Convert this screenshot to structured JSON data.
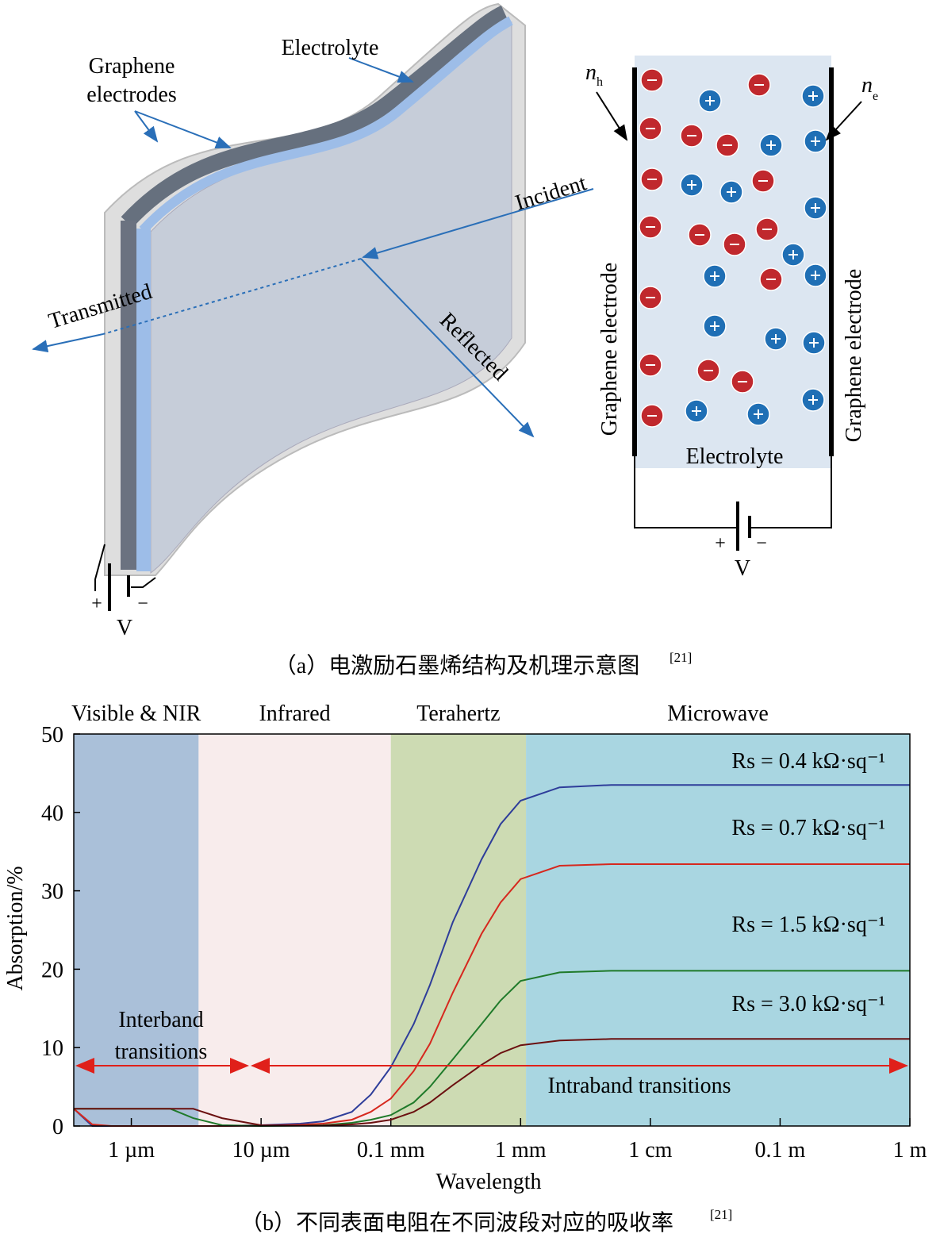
{
  "diagram_a": {
    "graphene_electrodes": [
      "Graphene",
      "electrodes"
    ],
    "electrolyte": "Electrolyte",
    "incident": "Incident",
    "transmitted": "Transmitted",
    "reflected": "Reflected",
    "plus": "+",
    "minus": "−",
    "voltage": "V"
  },
  "diagram_right": {
    "n_h": {
      "symbol": "n",
      "sub": "h"
    },
    "n_e": {
      "symbol": "n",
      "sub": "e"
    },
    "left_electrode": "Graphene electrode",
    "right_electrode": "Graphene electrode",
    "electrolyte": "Electrolyte",
    "plus": "+",
    "minus": "−",
    "voltage": "V"
  },
  "caption_a": {
    "text": "（a）电激励石墨烯结构及机理示意图",
    "ref": "[21]"
  },
  "caption_b": {
    "text": "（b）不同表面电阻在不同波段对应的吸收率",
    "ref": "[21]"
  },
  "chart_data": {
    "type": "line",
    "x_label": "Wavelength",
    "y_label": "Absorption/%",
    "xscale": "log",
    "xlim": [
      3.6e-07,
      1
    ],
    "ylim": [
      0,
      50
    ],
    "xticks": [
      {
        "value": 1e-06,
        "label": "1 µm"
      },
      {
        "value": 1e-05,
        "label": "10 µm"
      },
      {
        "value": 0.0001,
        "label": "0.1 mm"
      },
      {
        "value": 0.001,
        "label": "1 mm"
      },
      {
        "value": 0.01,
        "label": "1 cm"
      },
      {
        "value": 0.1,
        "label": "0.1 m"
      },
      {
        "value": 1,
        "label": "1 m"
      }
    ],
    "yticks": [
      0,
      10,
      20,
      30,
      40,
      50
    ],
    "bands": [
      {
        "label": "Visible & NIR",
        "range": [
          3.6e-07,
          3.3e-06
        ],
        "color": "#aac0d9"
      },
      {
        "label": "Infrared",
        "range": [
          3.3e-06,
          0.0001
        ],
        "color": "#f8ecec"
      },
      {
        "label": "Terahertz",
        "range": [
          0.0001,
          0.0011
        ],
        "color": "#cddbb3"
      },
      {
        "label": "Microwave",
        "range": [
          0.0011,
          1
        ],
        "color": "#a9d6e1"
      }
    ],
    "annotations": {
      "interband": [
        "Interband",
        "transitions"
      ],
      "intraband": "Intraband transitions"
    },
    "x": [
      3.6e-07,
      5e-07,
      7e-07,
      1e-06,
      2e-06,
      3e-06,
      5e-06,
      1e-05,
      2e-05,
      3e-05,
      5e-05,
      7e-05,
      0.0001,
      0.00015,
      0.0002,
      0.0003,
      0.0005,
      0.0007,
      0.001,
      0.002,
      0.005,
      0.01,
      0.1,
      1
    ],
    "series": [
      {
        "name": "Rs = 0.4 kΩ·sq⁻¹",
        "color": "#2e3d9a",
        "values": [
          2.2,
          0,
          0,
          0,
          0,
          0,
          0,
          0.1,
          0.3,
          0.6,
          1.8,
          4,
          7.5,
          13,
          18,
          26,
          34,
          38.5,
          41.5,
          43.2,
          43.5,
          43.5,
          43.5,
          43.5
        ]
      },
      {
        "name": "Rs = 0.7 kΩ·sq⁻¹",
        "color": "#d6281e",
        "values": [
          2.2,
          0.2,
          0,
          0,
          0,
          0,
          0,
          0.05,
          0.15,
          0.3,
          0.8,
          1.8,
          3.5,
          7,
          10.5,
          17,
          24.5,
          28.5,
          31.5,
          33.2,
          33.4,
          33.4,
          33.4,
          33.4
        ]
      },
      {
        "name": "Rs = 1.5 kΩ·sq⁻¹",
        "color": "#1f7a2a",
        "values": [
          2.2,
          2.2,
          2.2,
          2.2,
          2.2,
          1.0,
          0.1,
          0,
          0.05,
          0.1,
          0.4,
          0.8,
          1.4,
          3,
          5,
          8.5,
          13,
          16,
          18.5,
          19.6,
          19.8,
          19.8,
          19.8,
          19.8
        ]
      },
      {
        "name": "Rs = 3.0 kΩ·sq⁻¹",
        "color": "#6b1010",
        "values": [
          2.2,
          2.2,
          2.2,
          2.2,
          2.2,
          2.2,
          1.0,
          0.1,
          0.05,
          0.05,
          0.2,
          0.4,
          0.8,
          1.8,
          3,
          5.2,
          7.8,
          9.3,
          10.3,
          10.9,
          11.1,
          11.1,
          11.1,
          11.1
        ]
      }
    ]
  }
}
